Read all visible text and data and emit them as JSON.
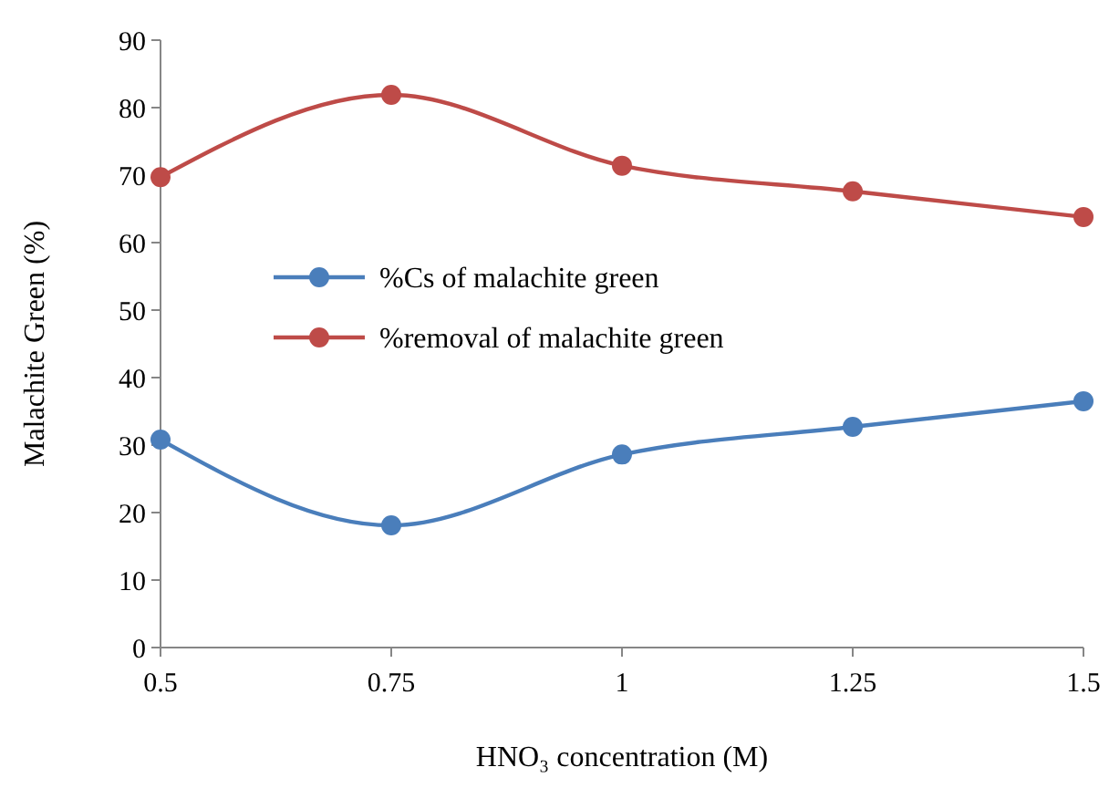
{
  "chart_data": {
    "type": "line",
    "xlabel": "HNO₃ concentration (M)",
    "ylabel": "Malachite Green (%)",
    "x": [
      0.5,
      0.75,
      1,
      1.25,
      1.5
    ],
    "series": [
      {
        "name": "%Cs of malachite green",
        "color": "#4a7ebb",
        "values": [
          30.8,
          18.1,
          28.6,
          32.7,
          36.5
        ]
      },
      {
        "name": "%removal of malachite green",
        "color": "#be4b48",
        "values": [
          69.7,
          81.9,
          71.4,
          67.6,
          63.8
        ]
      }
    ],
    "xlim": [
      0.5,
      1.5
    ],
    "xticks": [
      0.5,
      0.75,
      1,
      1.25,
      1.5
    ],
    "ylim": [
      0,
      90
    ],
    "yticks": [
      0,
      10,
      20,
      30,
      40,
      50,
      60,
      70,
      80,
      90
    ],
    "grid": false,
    "legend": "left",
    "marker": "circle",
    "line_style": "solid"
  }
}
